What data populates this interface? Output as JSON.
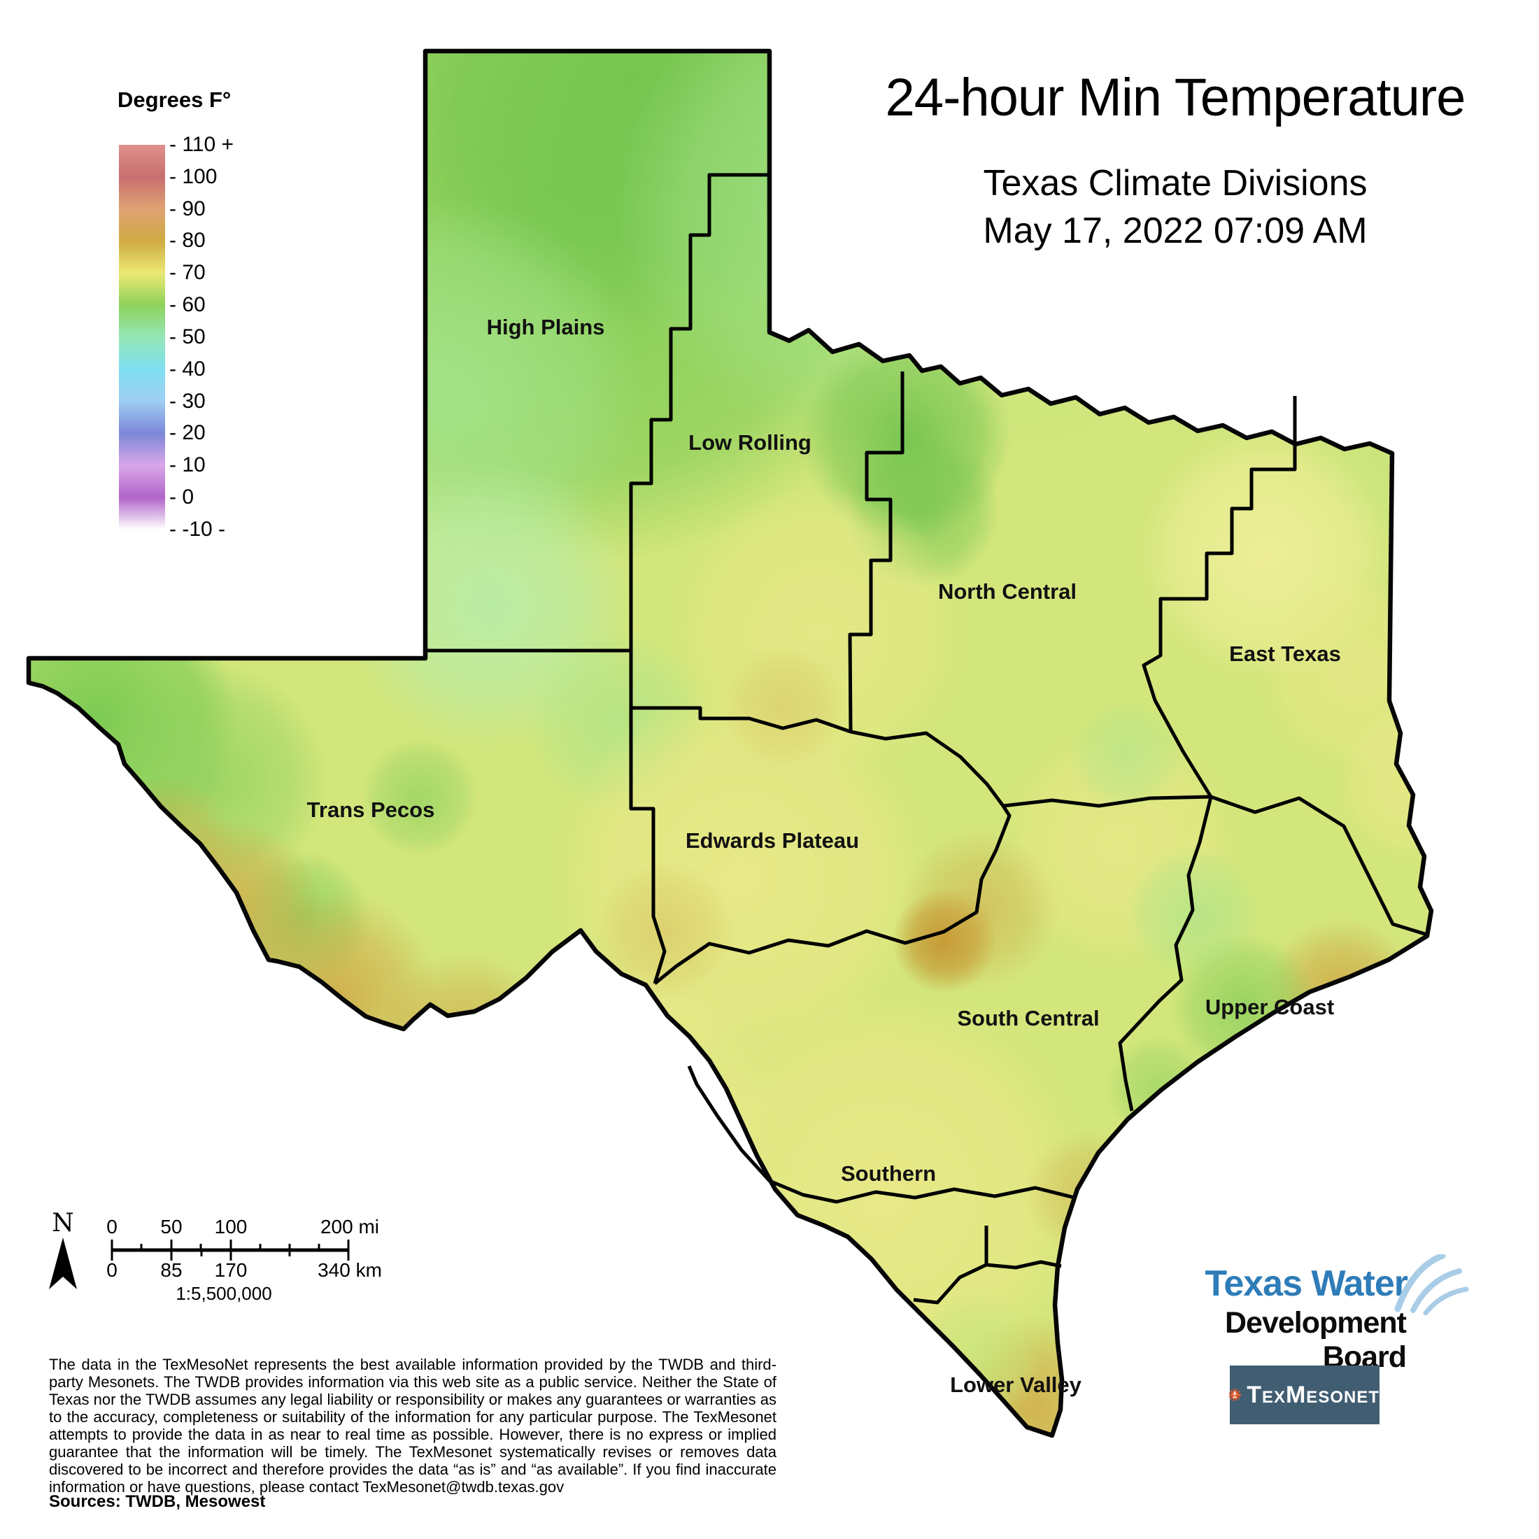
{
  "header": {
    "title": "24-hour Min Temperature",
    "subtitle": "Texas Climate Divisions",
    "datetime": "May 17, 2022 07:09 AM"
  },
  "legend": {
    "title": "Degrees F°",
    "units": "Degrees Fahrenheit",
    "ticks": [
      "110 +",
      "100",
      "90",
      "80",
      "70",
      "60",
      "50",
      "40",
      "30",
      "20",
      "10",
      "0",
      "-10 -"
    ],
    "stops": [
      {
        "value": "110",
        "color": "#de908b"
      },
      {
        "value": "100",
        "color": "#c96f70"
      },
      {
        "value": "90",
        "color": "#dfa273"
      },
      {
        "value": "80",
        "color": "#cfab42"
      },
      {
        "value": "70",
        "color": "#eae873"
      },
      {
        "value": "60",
        "color": "#8ed25c"
      },
      {
        "value": "50",
        "color": "#94e7b6"
      },
      {
        "value": "40",
        "color": "#7fdff2"
      },
      {
        "value": "30",
        "color": "#9ecdf3"
      },
      {
        "value": "20",
        "color": "#7d87d8"
      },
      {
        "value": "10",
        "color": "#d9a7e9"
      },
      {
        "value": "0",
        "color": "#b164c9"
      },
      {
        "value": "-10",
        "color": "#ffffff"
      }
    ]
  },
  "map": {
    "regions": [
      {
        "label": "High Plains"
      },
      {
        "label": "Low Rolling"
      },
      {
        "label": "North Central"
      },
      {
        "label": "East Texas"
      },
      {
        "label": "Trans Pecos"
      },
      {
        "label": "Edwards Plateau"
      },
      {
        "label": "South Central"
      },
      {
        "label": "Upper Coast"
      },
      {
        "label": "Southern"
      },
      {
        "label": "Lower Valley"
      }
    ],
    "dominant_colors": {
      "panhandle_green": "#80d057",
      "base_yellow_green": "#d3e67c",
      "central_yellow": "#e9e888",
      "warm_gold": "#d0a746",
      "border_color": "#000000"
    }
  },
  "scale_bar": {
    "north_label": "N",
    "miles": [
      "0",
      "50",
      "100",
      "200 mi"
    ],
    "km": [
      "0",
      "85",
      "170",
      "340 km"
    ],
    "ratio": "1:5,500,000"
  },
  "disclaimer": "The data in the TexMesoNet represents the best available information provided by the TWDB and third-party Mesonets. The TWDB provides information via this web site as a public service. Neither the State of Texas nor the TWDB assumes any legal liability or responsibility or makes any guarantees or warranties as to the accuracy, completeness or suitability of the information for any particular purpose. The TexMesonet attempts to provide the data in as near to real time as possible. However, there is no express or implied guarantee that the information will be timely. The TexMesonet systematically revises or removes data discovered to be incorrect and therefore provides the data “as is” and “as available”. If you find inaccurate information or have questions, please contact TexMesonet@twdb.texas.gov",
  "sources": "Sources: TWDB, Mesowest",
  "logos": {
    "twdb_line1": "Texas Water",
    "twdb_line2": "Development Board",
    "texmesonet": "TexMesonet"
  }
}
